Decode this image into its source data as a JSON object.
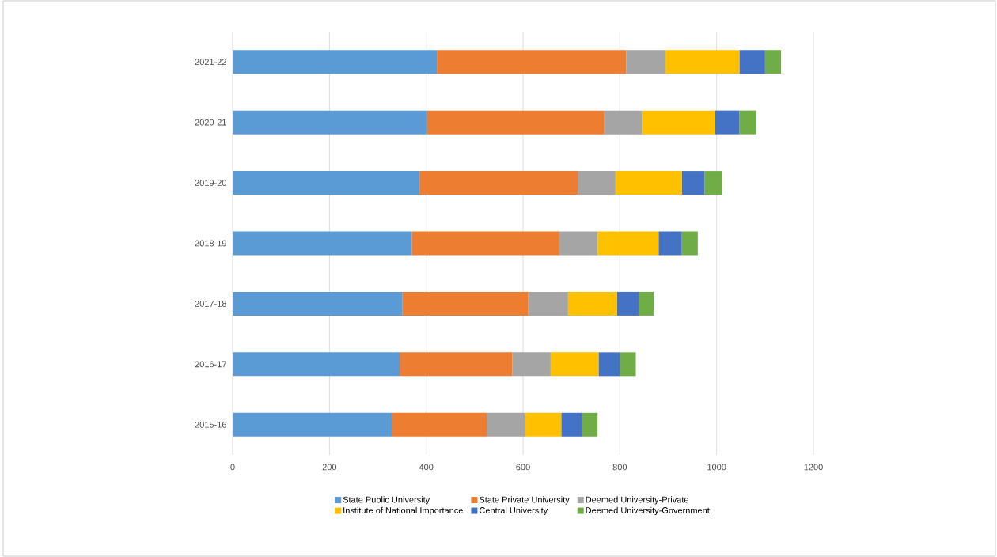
{
  "chart_data": {
    "type": "bar",
    "orientation": "horizontal",
    "stacked": true,
    "categories": [
      "2021-22",
      "2020-21",
      "2019-20",
      "2018-19",
      "2017-18",
      "2016-17",
      "2015-16"
    ],
    "series": [
      {
        "name": "State Public University",
        "color": "#5b9bd5",
        "values": [
          422,
          402,
          386,
          370,
          351,
          345,
          329
        ]
      },
      {
        "name": "State Private University",
        "color": "#ed7d31",
        "values": [
          391,
          366,
          327,
          305,
          260,
          233,
          196
        ]
      },
      {
        "name": "Deemed University-Private",
        "color": "#a5a5a5",
        "values": [
          81,
          78,
          78,
          79,
          82,
          79,
          79
        ]
      },
      {
        "name": "Institute of National Importance",
        "color": "#ffc000",
        "values": [
          153,
          151,
          137,
          126,
          101,
          99,
          75
        ]
      },
      {
        "name": "Central University",
        "color": "#4472c4",
        "values": [
          53,
          50,
          47,
          48,
          45,
          44,
          43
        ]
      },
      {
        "name": "Deemed University-Government",
        "color": "#70ad47",
        "values": [
          33,
          35,
          36,
          33,
          31,
          33,
          32
        ]
      }
    ],
    "xlim": [
      0,
      1200
    ],
    "xticks": [
      0,
      200,
      400,
      600,
      800,
      1000,
      1200
    ],
    "grid": "x",
    "legend": "bottom"
  }
}
